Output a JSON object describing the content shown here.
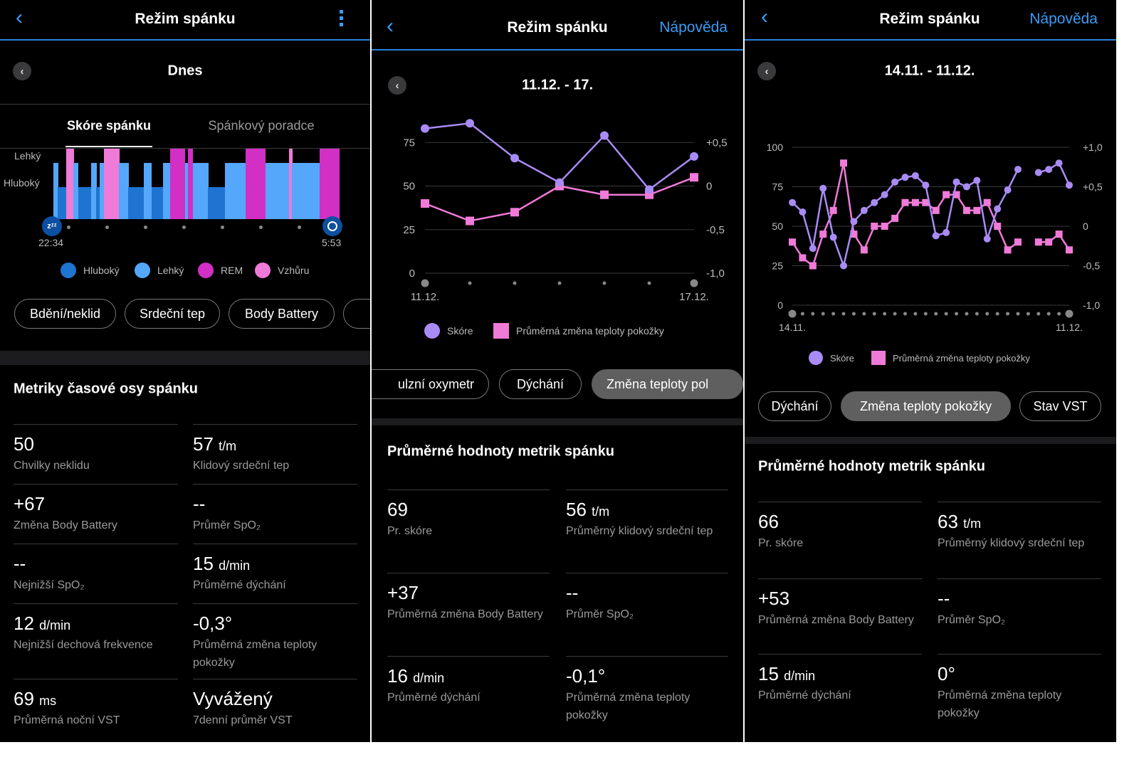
{
  "colors": {
    "accent": "#3b9cf5",
    "score": "#a98bf5",
    "temp": "#f07ad8",
    "deep": "#1f74d1",
    "light": "#54a7fa",
    "rem": "#d22fc4",
    "awake": "#f07ad8"
  },
  "p1": {
    "title": "Režim spánku",
    "back_icon": "chevron-left",
    "menu_icon": "kebab-vertical",
    "date": "Dnes",
    "tabs": [
      {
        "label": "Skóre spánku",
        "active": true
      },
      {
        "label": "Spánkový poradce",
        "active": false
      }
    ],
    "stage_labels": {
      "light": "Lehký",
      "deep": "Hluboký"
    },
    "start_time": "22:34",
    "end_time": "5:53",
    "legend": [
      {
        "key": "deep",
        "label": "Hluboký"
      },
      {
        "key": "light",
        "label": "Lehký"
      },
      {
        "key": "rem",
        "label": "REM"
      },
      {
        "key": "awake",
        "label": "Vzhůru"
      }
    ],
    "pills": [
      "Bdění/neklid",
      "Srdeční tep",
      "Body Battery",
      ""
    ],
    "heading": "Metriky časové osy spánku",
    "metrics": [
      {
        "value": "50",
        "unit": "",
        "label": "Chvilky neklidu"
      },
      {
        "value": "57",
        "unit": "t/m",
        "label": "Klidový srdeční tep"
      },
      {
        "value": "+67",
        "unit": "",
        "label": "Změna Body Battery"
      },
      {
        "value": "--",
        "unit": "",
        "label": "Průměr SpO₂"
      },
      {
        "value": "--",
        "unit": "",
        "label": "Nejnižší SpO₂"
      },
      {
        "value": "15",
        "unit": "d/min",
        "label": "Průměrné dýchání"
      },
      {
        "value": "12",
        "unit": "d/min",
        "label": "Nejnižší dechová frekvence"
      },
      {
        "value": "-0,3°",
        "unit": "",
        "label": "Průměrná změna teploty pokožky"
      },
      {
        "value": "69",
        "unit": "ms",
        "label": "Průměrná noční VST"
      },
      {
        "value": "Vyvážený",
        "unit": "",
        "label": "7denní průměr VST"
      }
    ],
    "sleep_stages_minutes": [
      [
        "light",
        7
      ],
      [
        "deep",
        13
      ],
      [
        "awake",
        11
      ],
      [
        "light",
        7
      ],
      [
        "deep",
        20
      ],
      [
        "light",
        8
      ],
      [
        "deep",
        5
      ],
      [
        "light",
        7
      ],
      [
        "awake",
        23
      ],
      [
        "light",
        14
      ],
      [
        "deep",
        24
      ],
      [
        "light",
        12
      ],
      [
        "deep",
        18
      ],
      [
        "light",
        10
      ],
      [
        "rem",
        23
      ],
      [
        "light",
        5
      ],
      [
        "rem",
        7
      ],
      [
        "light",
        24
      ],
      [
        "deep",
        26
      ],
      [
        "light",
        31
      ],
      [
        "rem",
        31
      ],
      [
        "light",
        36
      ],
      [
        "awake",
        5
      ],
      [
        "light",
        42
      ],
      [
        "rem",
        31
      ]
    ]
  },
  "p2": {
    "title": "Režim spánku",
    "help": "Nápověda",
    "date": "11.12. - 17.",
    "pills": [
      {
        "label": "ulzní oxymetr",
        "selected": false
      },
      {
        "label": "Dýchání",
        "selected": false
      },
      {
        "label": "Změna teploty pol",
        "selected": true
      }
    ],
    "heading": "Průměrné hodnoty metrik spánku",
    "metrics": [
      {
        "value": "69",
        "unit": "",
        "label": "Pr. skóre"
      },
      {
        "value": "56",
        "unit": "t/m",
        "label": "Průměrný klidový srdeční tep"
      },
      {
        "value": "+37",
        "unit": "",
        "label": "Průměrná změna Body Battery"
      },
      {
        "value": "--",
        "unit": "",
        "label": "Průměr SpO₂"
      },
      {
        "value": "16",
        "unit": "d/min",
        "label": "Průměrné dýchání"
      },
      {
        "value": "-0,1°",
        "unit": "",
        "label": "Průměrná změna teploty pokožky"
      }
    ]
  },
  "p3": {
    "title": "Režim spánku",
    "help": "Nápověda",
    "date": "14.11. - 11.12.",
    "pills": [
      {
        "label": "Dýchání",
        "selected": false
      },
      {
        "label": "Změna teploty pokožky",
        "selected": true
      },
      {
        "label": "Stav VST",
        "selected": false
      }
    ],
    "heading": "Průměrné hodnoty metrik spánku",
    "metrics": [
      {
        "value": "66",
        "unit": "",
        "label": "Pr. skóre"
      },
      {
        "value": "63",
        "unit": "t/m",
        "label": "Průměrný klidový srdeční tep"
      },
      {
        "value": "+53",
        "unit": "",
        "label": "Průměrná změna Body Battery"
      },
      {
        "value": "--",
        "unit": "",
        "label": "Průměr SpO₂"
      },
      {
        "value": "15",
        "unit": "d/min",
        "label": "Průměrné dýchání"
      },
      {
        "value": "0°",
        "unit": "",
        "label": "Průměrná změna teploty pokožky"
      }
    ]
  },
  "chart_data": [
    {
      "type": "line",
      "x": [
        "11.12.",
        "12.12.",
        "13.12.",
        "14.12.",
        "15.12.",
        "16.12.",
        "17.12."
      ],
      "xtick_labels": [
        "11.12.",
        "17.12."
      ],
      "ylim": [
        0,
        100
      ],
      "yticks": [
        "0",
        "25",
        "50",
        "75"
      ],
      "y2lim": [
        -1.0,
        1.0
      ],
      "y2ticks": [
        "-1,0",
        "-0,5",
        "0",
        "+0,5"
      ],
      "grid": true,
      "legend_position": "bottom",
      "series": [
        {
          "name": "Skóre",
          "axis": "left",
          "marker": "circle",
          "values": [
            83,
            86,
            66,
            52,
            79,
            48,
            67
          ]
        },
        {
          "name": "Průměrná změna teploty pokožky",
          "axis": "right",
          "marker": "square",
          "values": [
            -0.2,
            -0.4,
            -0.3,
            0,
            -0.1,
            -0.1,
            0.1
          ]
        }
      ]
    },
    {
      "type": "line",
      "x_count_days": 28,
      "xtick_labels": [
        "14.11.",
        "11.12."
      ],
      "ylim": [
        0,
        100
      ],
      "yticks": [
        "0",
        "25",
        "50",
        "75",
        "100"
      ],
      "y2lim": [
        -1.0,
        1.0
      ],
      "y2ticks": [
        "-1,0",
        "-0,5",
        "0",
        "+0,5",
        "+1,0"
      ],
      "grid": true,
      "legend_position": "bottom",
      "series": [
        {
          "name": "Skóre",
          "axis": "left",
          "marker": "circle",
          "values": [
            65,
            59,
            36,
            74,
            43,
            25,
            53,
            60,
            65,
            70,
            78,
            81,
            82,
            76,
            44,
            46,
            78,
            75,
            79,
            42,
            61,
            73,
            86,
            null,
            84,
            86,
            90,
            76
          ]
        },
        {
          "name": "Průměrná změna teploty pokožky",
          "axis": "right",
          "marker": "square",
          "values": [
            -0.2,
            -0.4,
            -0.5,
            -0.1,
            0.2,
            0.8,
            -0.1,
            -0.3,
            0,
            0,
            0.1,
            0.3,
            0.3,
            0.3,
            0.2,
            0.4,
            0.4,
            0.2,
            0.2,
            0.3,
            0,
            -0.3,
            -0.2,
            null,
            -0.2,
            -0.2,
            -0.1,
            -0.3
          ]
        }
      ]
    }
  ]
}
